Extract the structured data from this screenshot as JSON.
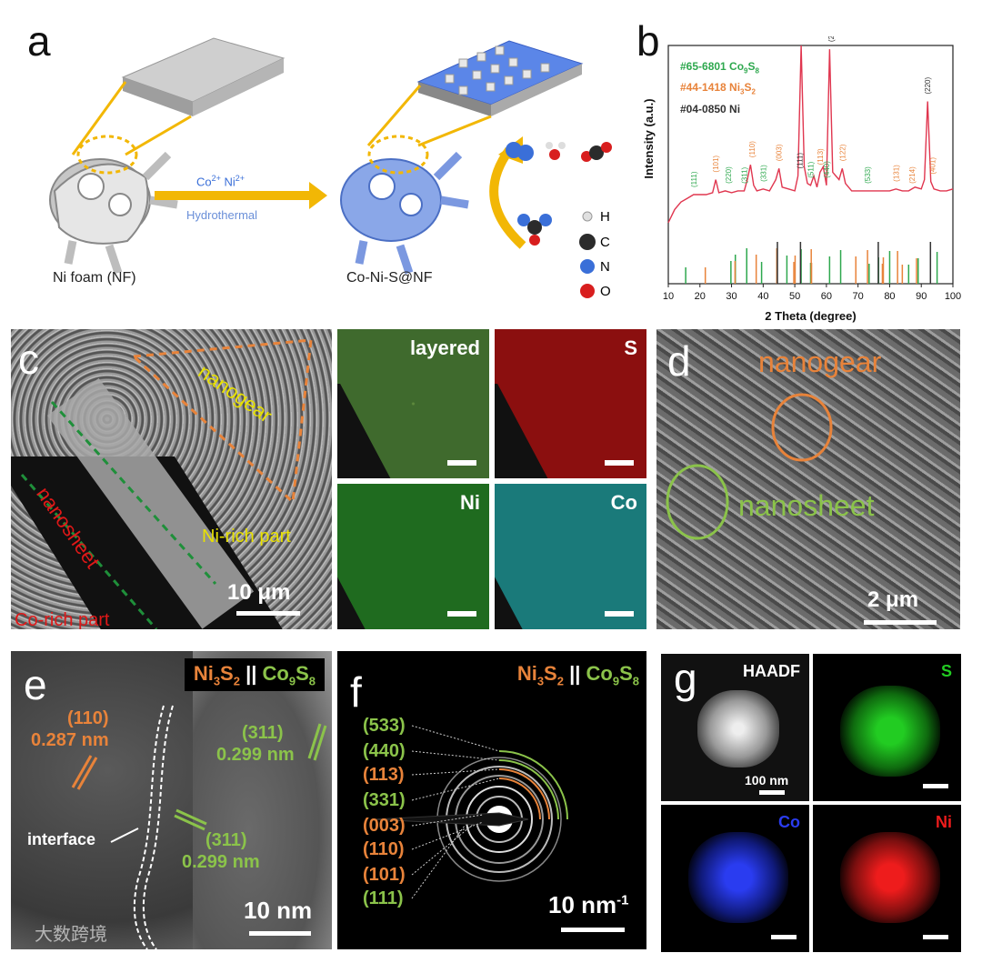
{
  "labels": {
    "a": "a",
    "b": "b",
    "c": "c",
    "d": "d",
    "e": "e",
    "f": "f",
    "g": "g"
  },
  "panel_a": {
    "arrow_top": "Co",
    "arrow_top_sup": "2+",
    "arrow_top2": " Ni",
    "arrow_top2_sup": "2+",
    "arrow_bottom": "Hydrothermal",
    "left_caption": "Ni foam (NF)",
    "right_caption": "Co-Ni-S@NF",
    "legend": [
      {
        "symbol": "H",
        "color": "#e0e0e0"
      },
      {
        "symbol": "C",
        "color": "#2b2b2b"
      },
      {
        "symbol": "N",
        "color": "#3a6fd8"
      },
      {
        "symbol": "O",
        "color": "#d81e1e"
      }
    ]
  },
  "panel_b": {
    "legend": [
      {
        "prefix": "#65-6801 Co",
        "s1": "9",
        "mid": "S",
        "s2": "8",
        "color": "#2ea84e"
      },
      {
        "prefix": "#44-1418 Ni",
        "s1": "3",
        "mid": "S",
        "s2": "2",
        "color": "#e8833a"
      },
      {
        "prefix": "#04-0850 Ni",
        "s1": "",
        "mid": "",
        "s2": "",
        "color": "#333333"
      }
    ],
    "ylabel": "Intensity (a.u.)",
    "xlabel": "2 Theta (degree)",
    "xticks": [
      "10",
      "20",
      "30",
      "40",
      "50",
      "60",
      "70",
      "80",
      "90",
      "100"
    ]
  },
  "chart_data": {
    "type": "line",
    "title": "",
    "xlabel": "2 Theta (degree)",
    "ylabel": "Intensity (a.u.)",
    "xlim": [
      10,
      100
    ],
    "series": [
      {
        "name": "Co-Ni-S@NF",
        "color": "#e0364f",
        "x": [
          10,
          12,
          14,
          16,
          18,
          20,
          22,
          24,
          25,
          26,
          28,
          30,
          32,
          34,
          35,
          36,
          37,
          38,
          40,
          42,
          44,
          45,
          46,
          48,
          50,
          51,
          52,
          53,
          54,
          55,
          56,
          57,
          58,
          59,
          60,
          61,
          62,
          63,
          64,
          65,
          66,
          68,
          70,
          72,
          74,
          76,
          78,
          80,
          82,
          84,
          86,
          88,
          90,
          91,
          92,
          93,
          94,
          96,
          98,
          100
        ],
        "values": [
          5,
          12,
          16,
          18,
          20,
          20,
          20,
          21,
          28,
          21,
          22,
          21,
          22,
          22,
          28,
          36,
          25,
          22,
          23,
          22,
          28,
          34,
          24,
          23,
          22,
          30,
          100,
          35,
          26,
          25,
          30,
          24,
          32,
          35,
          25,
          98,
          32,
          30,
          28,
          34,
          26,
          22,
          22,
          22,
          22,
          22,
          22,
          22,
          23,
          22,
          22,
          24,
          23,
          28,
          70,
          27,
          23,
          22,
          22,
          23
        ]
      }
    ],
    "peak_labels": [
      {
        "x": 18,
        "text": "(111)",
        "color": "#2ea84e"
      },
      {
        "x": 25,
        "text": "(101)",
        "color": "#e8833a"
      },
      {
        "x": 29,
        "text": "(220)",
        "color": "#2ea84e"
      },
      {
        "x": 34,
        "text": "(311)",
        "color": "#2ea84e"
      },
      {
        "x": 36.5,
        "text": "(110)",
        "color": "#e8833a"
      },
      {
        "x": 40,
        "text": "(331)",
        "color": "#2ea84e"
      },
      {
        "x": 45,
        "text": "(003)",
        "color": "#e8833a"
      },
      {
        "x": 51.5,
        "text": "(111)",
        "color": "#333333"
      },
      {
        "x": 55,
        "text": "(511)",
        "color": "#2ea84e"
      },
      {
        "x": 58,
        "text": "(113)",
        "color": "#e8833a"
      },
      {
        "x": 60,
        "text": "(440)",
        "color": "#2ea84e"
      },
      {
        "x": 61.5,
        "text": "(200)",
        "color": "#333333"
      },
      {
        "x": 65,
        "text": "(122)",
        "color": "#e8833a"
      },
      {
        "x": 73,
        "text": "(533)",
        "color": "#2ea84e"
      },
      {
        "x": 82,
        "text": "(131)",
        "color": "#e8833a"
      },
      {
        "x": 87,
        "text": "(214)",
        "color": "#e8833a"
      },
      {
        "x": 92,
        "text": "(220)",
        "color": "#333333"
      },
      {
        "x": 93.5,
        "text": "(401)",
        "color": "#e8833a"
      }
    ],
    "reference_lines": {
      "Co9S8": {
        "color": "#2ea84e",
        "x": [
          15.5,
          29.8,
          31.2,
          34.8,
          39.5,
          47.5,
          52,
          55,
          61,
          64.5,
          73.5,
          76.5,
          80,
          86,
          89,
          95
        ]
      },
      "Ni3S2": {
        "color": "#e8833a",
        "x": [
          21.7,
          31.1,
          37.8,
          44.3,
          49.7,
          50.1,
          55.2,
          55.3,
          69.3,
          73,
          77.7,
          78,
          82.5,
          84,
          88.5
        ]
      },
      "Ni": {
        "color": "#333333",
        "x": [
          44.5,
          51.8,
          76.4,
          92.9
        ]
      }
    }
  },
  "panel_c": {
    "nanogear": "nanogear",
    "nanosheet": "nanosheet",
    "ni_rich": "Ni-rich part",
    "co_rich": "Co-rich part",
    "scale": "10 μm",
    "maps": [
      {
        "title": "layered",
        "bg": "#3f6a2d"
      },
      {
        "title": "S",
        "bg": "#8b0f0f"
      },
      {
        "title": "Ni",
        "bg": "#1f6b1f"
      },
      {
        "title": "Co",
        "bg": "#1a7a7a"
      }
    ]
  },
  "panel_d": {
    "nanogear": "nanogear",
    "nanosheet": "nanosheet",
    "scale": "2 μm"
  },
  "panel_e": {
    "phase_a": "Ni",
    "phase_a_s1": "3",
    "phase_a_mid": "S",
    "phase_a_s2": "2",
    "sep": " || ",
    "phase_b": "Co",
    "phase_b_s1": "9",
    "phase_b_mid": "S",
    "phase_b_s2": "8",
    "plane1": "(110)",
    "d1": "0.287 nm",
    "plane2": "(311)",
    "d2": "0.299 nm",
    "plane3": "(311)",
    "d3": "0.299 nm",
    "interface": "interface",
    "scale": "10 nm",
    "watermark": "大数跨境"
  },
  "panel_f": {
    "rings": [
      {
        "label": "(533)",
        "color": "#8bc34a"
      },
      {
        "label": "(440)",
        "color": "#8bc34a"
      },
      {
        "label": "(113)",
        "color": "#e8833a"
      },
      {
        "label": "(331)",
        "color": "#8bc34a"
      },
      {
        "label": "(003)",
        "color": "#e8833a"
      },
      {
        "label": "(110)",
        "color": "#e8833a"
      },
      {
        "label": "(101)",
        "color": "#e8833a"
      },
      {
        "label": "(111)",
        "color": "#8bc34a"
      }
    ],
    "scale": "10 nm",
    "scale_sup": "-1"
  },
  "panel_g": {
    "maps": [
      {
        "title": "HAADF",
        "color": "#ffffff",
        "bg": "#111"
      },
      {
        "title": "S",
        "color": "#22cc22",
        "bg": "#000"
      },
      {
        "title": "Co",
        "color": "#2a3cf0",
        "bg": "#000"
      },
      {
        "title": "Ni",
        "color": "#ee1c1c",
        "bg": "#000"
      }
    ],
    "scale": "100 nm"
  }
}
